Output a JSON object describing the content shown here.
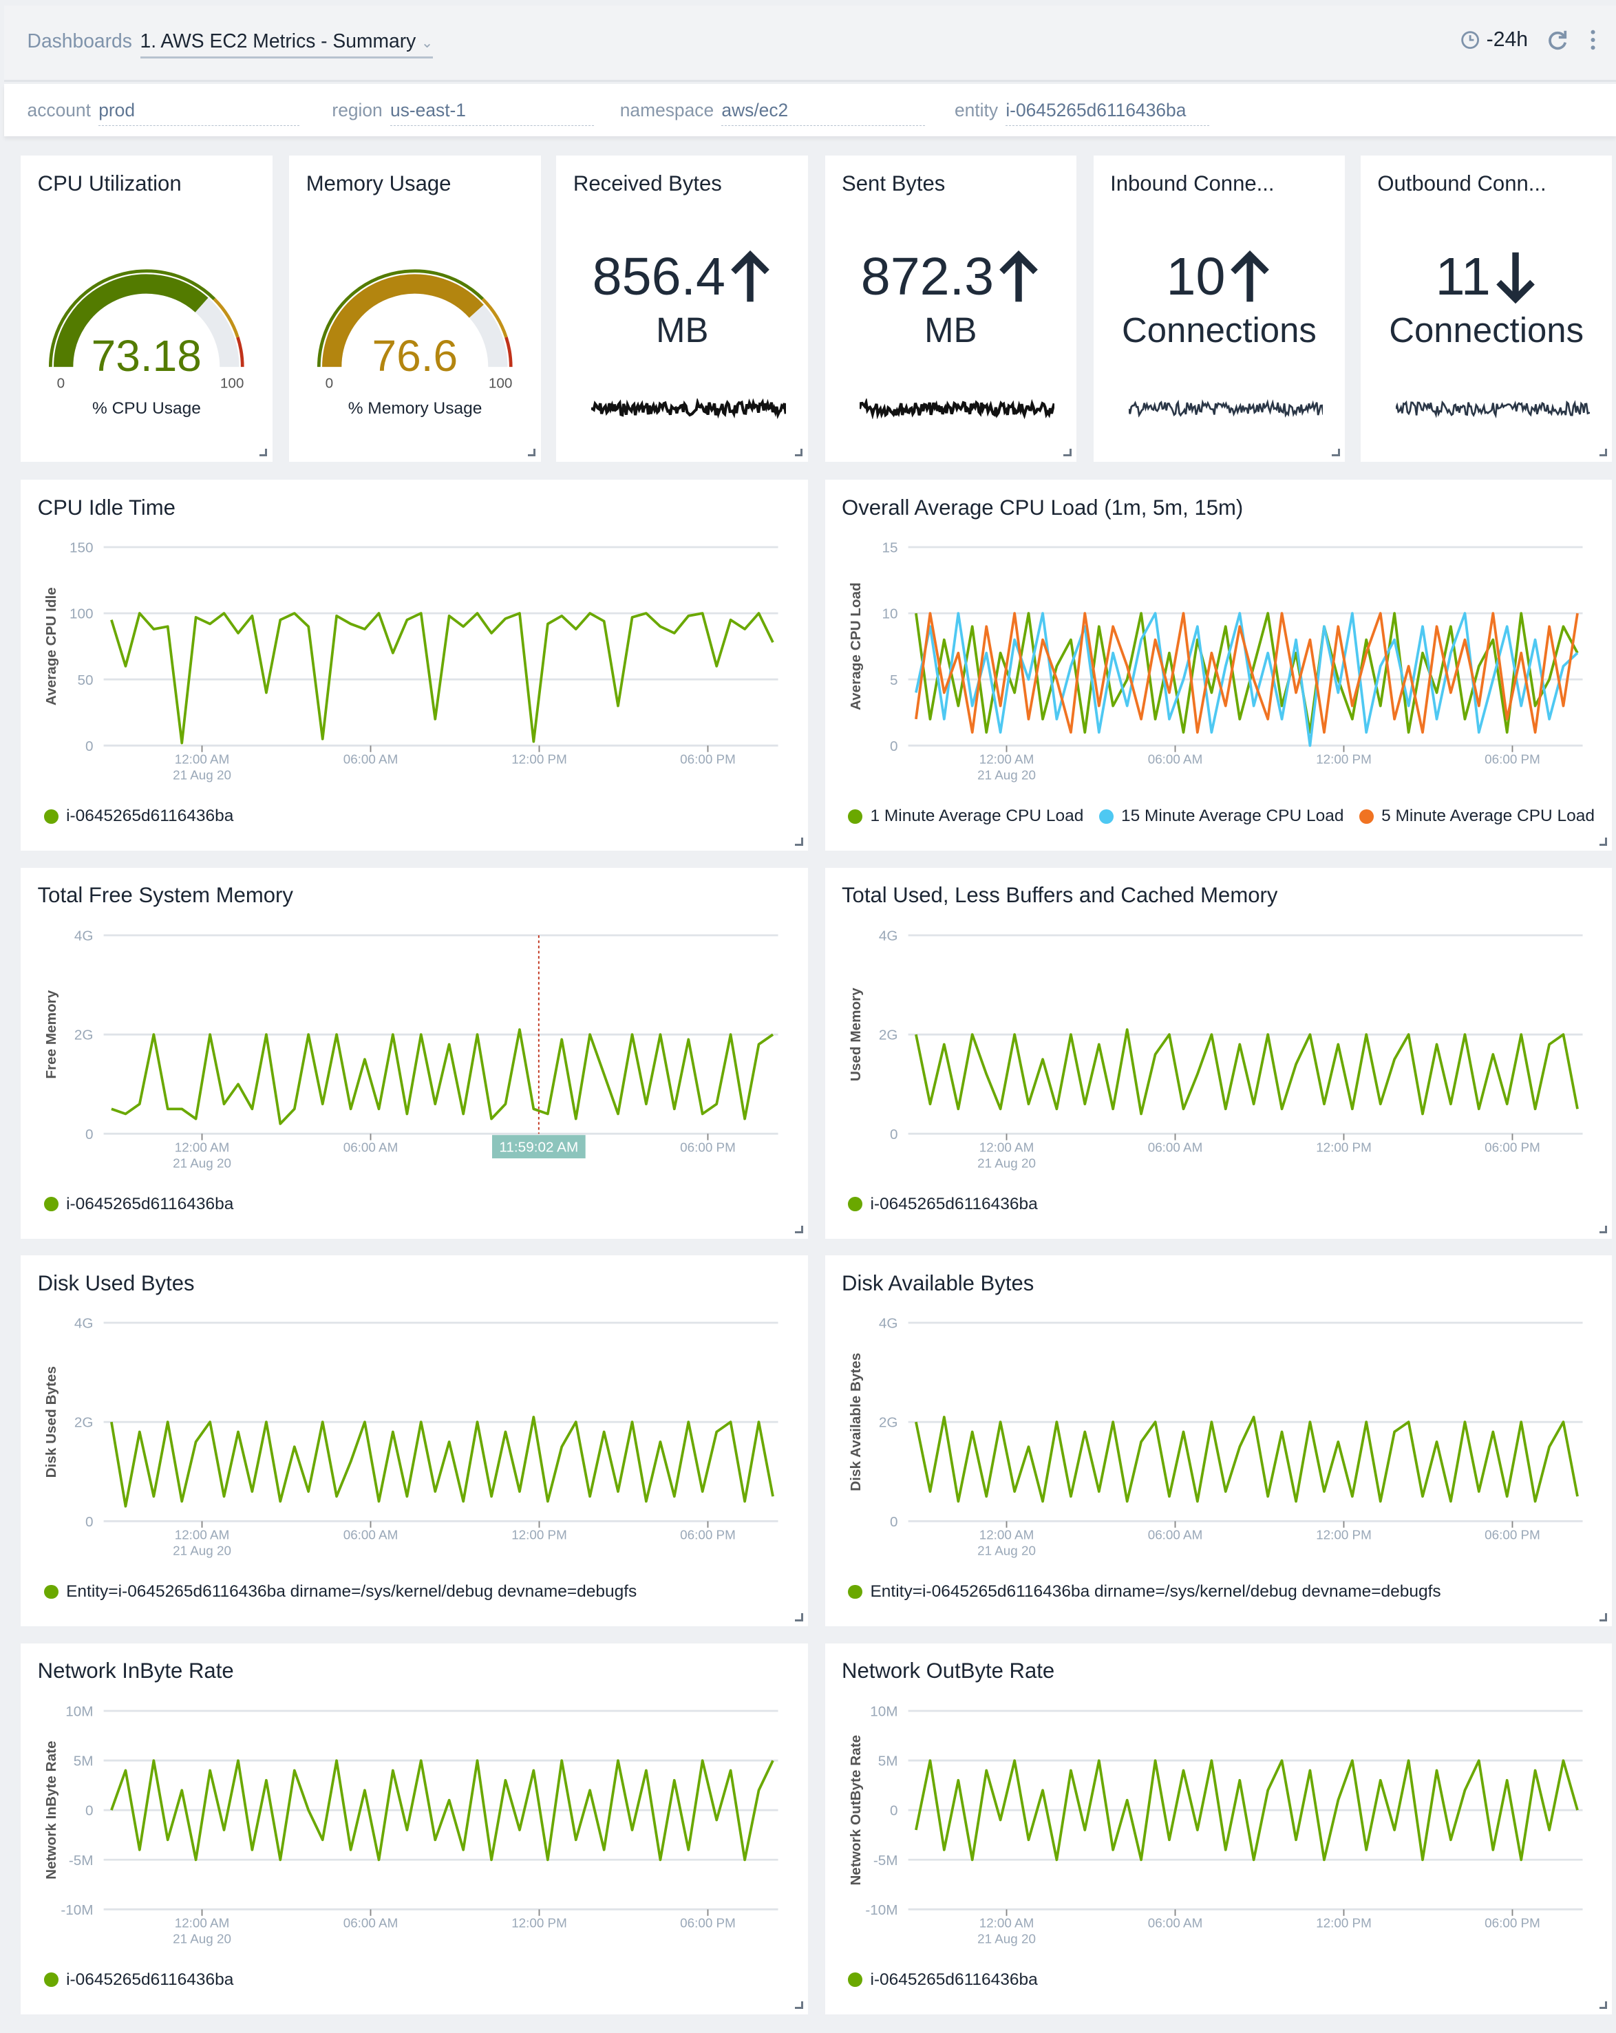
{
  "header": {
    "breadcrumb": "Dashboards",
    "title": "1. AWS EC2 Metrics - Summary",
    "time_range": "-24h",
    "icons": [
      "clock-icon",
      "refresh-icon",
      "more-vertical-icon",
      "chevron-down-icon"
    ]
  },
  "filters": [
    {
      "label": "account",
      "value": "prod"
    },
    {
      "label": "region",
      "value": "us-east-1"
    },
    {
      "label": "namespace",
      "value": "aws/ec2"
    },
    {
      "label": "entity",
      "value": "i-0645265d6116436ba"
    }
  ],
  "stats": [
    {
      "title": "CPU Utilization",
      "type": "gauge",
      "value": "73.18",
      "min": "0",
      "max": "100",
      "label": "% CPU Usage",
      "color": "#537b00"
    },
    {
      "title": "Memory Usage",
      "type": "gauge",
      "value": "76.6",
      "min": "0",
      "max": "100",
      "label": "% Memory Usage",
      "color": "#b3850f"
    },
    {
      "title": "Received Bytes",
      "type": "single",
      "value": "856.4",
      "unit": "MB",
      "trend": "up"
    },
    {
      "title": "Sent Bytes",
      "type": "single",
      "value": "872.3",
      "unit": "MB",
      "trend": "up"
    },
    {
      "title": "Inbound Conne...",
      "type": "single",
      "value": "10",
      "unit": "Connections",
      "trend": "up"
    },
    {
      "title": "Outbound Conn...",
      "type": "single",
      "value": "11",
      "unit": "Connections",
      "trend": "down"
    }
  ],
  "gauge_thresholds": [
    {
      "to": 75,
      "color": "#537b00"
    },
    {
      "to": 90,
      "color": "#c29118"
    },
    {
      "to": 100,
      "color": "#c0321a"
    }
  ],
  "gauge_background": "#e8ebef",
  "chart_data": [
    {
      "type": "line",
      "title": "CPU Idle Time",
      "ylabel": "Average CPU Idle",
      "ylim": [
        0,
        150
      ],
      "yticks": [
        {
          "v": 0,
          "label": "0"
        },
        {
          "v": 50,
          "label": "50"
        },
        {
          "v": 100,
          "label": "100"
        },
        {
          "v": 150,
          "label": "150"
        }
      ],
      "x_start": "2020-08-20T20:30",
      "x_end": "2020-08-21T20:30",
      "xticks": [
        {
          "at": "2020-08-21T00:00",
          "label": "12:00 AM",
          "sub": "21 Aug 20"
        },
        {
          "at": "2020-08-21T06:00",
          "label": "06:00 AM"
        },
        {
          "at": "2020-08-21T12:00",
          "label": "12:00 PM"
        },
        {
          "at": "2020-08-21T18:00",
          "label": "06:00 PM"
        }
      ],
      "series": [
        {
          "name": "i-0645265d6116436ba",
          "color": "#6aa800",
          "values": [
            95,
            60,
            100,
            88,
            90,
            2,
            97,
            92,
            100,
            85,
            98,
            40,
            95,
            100,
            90,
            5,
            98,
            92,
            88,
            100,
            70,
            95,
            100,
            20,
            98,
            90,
            100,
            85,
            96,
            100,
            3,
            92,
            98,
            88,
            100,
            94,
            30,
            97,
            100,
            90,
            85,
            98,
            100,
            60,
            95,
            88,
            100,
            78
          ]
        }
      ]
    },
    {
      "type": "line",
      "title": "Overall Average CPU Load (1m, 5m, 15m)",
      "ylabel": "Average CPU Load",
      "ylim": [
        0,
        15
      ],
      "yticks": [
        {
          "v": 0,
          "label": "0"
        },
        {
          "v": 5,
          "label": "5"
        },
        {
          "v": 10,
          "label": "10"
        },
        {
          "v": 15,
          "label": "15"
        }
      ],
      "x_start": "2020-08-20T20:30",
      "x_end": "2020-08-21T20:30",
      "xticks": [
        {
          "at": "2020-08-21T00:00",
          "label": "12:00 AM",
          "sub": "21 Aug 20"
        },
        {
          "at": "2020-08-21T06:00",
          "label": "06:00 AM"
        },
        {
          "at": "2020-08-21T12:00",
          "label": "12:00 PM"
        },
        {
          "at": "2020-08-21T18:00",
          "label": "06:00 PM"
        }
      ],
      "series": [
        {
          "name": "1 Minute Average CPU Load",
          "color": "#6aa800",
          "values": [
            10,
            2,
            8,
            3,
            9,
            1,
            7,
            4,
            10,
            2,
            6,
            8,
            1,
            9,
            3,
            5,
            10,
            2,
            7,
            1,
            8,
            4,
            9,
            2,
            6,
            10,
            3,
            7,
            1,
            9,
            5,
            2,
            8,
            3,
            10,
            1,
            7,
            4,
            9,
            2,
            6,
            8,
            1,
            10,
            3,
            5,
            9,
            7
          ]
        },
        {
          "name": "15 Minute Average CPU Load",
          "color": "#4ec8f2",
          "values": [
            4,
            9,
            2,
            10,
            3,
            7,
            1,
            8,
            5,
            10,
            2,
            6,
            9,
            1,
            7,
            3,
            8,
            10,
            2,
            5,
            9,
            1,
            6,
            10,
            3,
            7,
            2,
            8,
            0,
            9,
            4,
            10,
            1,
            6,
            8,
            3,
            9,
            2,
            7,
            10,
            1,
            5,
            9,
            3,
            8,
            2,
            6,
            7
          ]
        },
        {
          "name": "5 Minute Average CPU Load",
          "color": "#f07322",
          "values": [
            2,
            10,
            4,
            7,
            1,
            9,
            3,
            10,
            2,
            8,
            5,
            1,
            10,
            3,
            9,
            6,
            2,
            8,
            4,
            10,
            1,
            7,
            3,
            9,
            5,
            2,
            10,
            4,
            8,
            1,
            9,
            3,
            7,
            10,
            2,
            6,
            1,
            9,
            4,
            8,
            3,
            10,
            2,
            7,
            1,
            9,
            3,
            10
          ]
        }
      ]
    },
    {
      "type": "line",
      "title": "Total Free System Memory",
      "ylabel": "Free Memory",
      "ylim": [
        0,
        4
      ],
      "yticks": [
        {
          "v": 0,
          "label": "0"
        },
        {
          "v": 2,
          "label": "2G"
        },
        {
          "v": 4,
          "label": "4G"
        }
      ],
      "x_start": "2020-08-20T20:30",
      "x_end": "2020-08-21T20:30",
      "xticks": [
        {
          "at": "2020-08-21T00:00",
          "label": "12:00 AM",
          "sub": "21 Aug 20"
        },
        {
          "at": "2020-08-21T06:00",
          "label": "06:00 AM"
        },
        {
          "at": "2020-08-21T18:00",
          "label": "06:00 PM"
        }
      ],
      "cursor": {
        "at": "2020-08-21T11:59:02",
        "label": "11:59:02 AM"
      },
      "series": [
        {
          "name": "i-0645265d6116436ba",
          "color": "#6aa800",
          "values": [
            0.5,
            0.4,
            0.6,
            2.0,
            0.5,
            0.5,
            0.3,
            2.0,
            0.6,
            1.0,
            0.5,
            2.0,
            0.2,
            0.5,
            2.0,
            0.6,
            2.0,
            0.5,
            1.5,
            0.5,
            2.0,
            0.4,
            2.0,
            0.6,
            1.8,
            0.4,
            2.0,
            0.3,
            0.6,
            2.1,
            0.5,
            0.4,
            1.9,
            0.3,
            2.0,
            1.2,
            0.4,
            2.0,
            0.6,
            2.0,
            0.5,
            1.9,
            0.4,
            0.6,
            2.0,
            0.3,
            1.8,
            2.0
          ]
        }
      ]
    },
    {
      "type": "line",
      "title": "Total Used, Less Buffers and Cached Memory",
      "ylabel": "Used Memory",
      "ylim": [
        0,
        4
      ],
      "yticks": [
        {
          "v": 0,
          "label": "0"
        },
        {
          "v": 2,
          "label": "2G"
        },
        {
          "v": 4,
          "label": "4G"
        }
      ],
      "x_start": "2020-08-20T20:30",
      "x_end": "2020-08-21T20:30",
      "xticks": [
        {
          "at": "2020-08-21T00:00",
          "label": "12:00 AM",
          "sub": "21 Aug 20"
        },
        {
          "at": "2020-08-21T06:00",
          "label": "06:00 AM"
        },
        {
          "at": "2020-08-21T12:00",
          "label": "12:00 PM"
        },
        {
          "at": "2020-08-21T18:00",
          "label": "06:00 PM"
        }
      ],
      "series": [
        {
          "name": "i-0645265d6116436ba",
          "color": "#6aa800",
          "values": [
            2.0,
            0.6,
            1.8,
            0.5,
            2.0,
            1.2,
            0.5,
            2.0,
            0.6,
            1.5,
            0.5,
            2.0,
            0.6,
            1.8,
            0.5,
            2.1,
            0.4,
            1.6,
            2.0,
            0.5,
            1.2,
            2.0,
            0.5,
            1.8,
            0.6,
            2.0,
            0.5,
            1.4,
            2.0,
            0.6,
            1.8,
            0.5,
            2.0,
            0.6,
            1.5,
            2.0,
            0.4,
            1.8,
            0.6,
            2.0,
            0.5,
            1.6,
            0.6,
            2.0,
            0.5,
            1.8,
            2.0,
            0.5
          ]
        }
      ]
    },
    {
      "type": "line",
      "title": "Disk Used Bytes",
      "ylabel": "Disk Used Bytes",
      "ylim": [
        0,
        4
      ],
      "yticks": [
        {
          "v": 0,
          "label": "0"
        },
        {
          "v": 2,
          "label": "2G"
        },
        {
          "v": 4,
          "label": "4G"
        }
      ],
      "x_start": "2020-08-20T20:30",
      "x_end": "2020-08-21T20:30",
      "xticks": [
        {
          "at": "2020-08-21T00:00",
          "label": "12:00 AM",
          "sub": "21 Aug 20"
        },
        {
          "at": "2020-08-21T06:00",
          "label": "06:00 AM"
        },
        {
          "at": "2020-08-21T12:00",
          "label": "12:00 PM"
        },
        {
          "at": "2020-08-21T18:00",
          "label": "06:00 PM"
        }
      ],
      "series": [
        {
          "name": "Entity=i-0645265d6116436ba dirname=/sys/kernel/debug devname=debugfs",
          "color": "#6aa800",
          "values": [
            2.0,
            0.3,
            1.8,
            0.5,
            2.0,
            0.4,
            1.6,
            2.0,
            0.5,
            1.8,
            0.6,
            2.0,
            0.4,
            1.5,
            0.6,
            2.0,
            0.5,
            1.2,
            2.0,
            0.4,
            1.8,
            0.5,
            2.0,
            0.6,
            1.6,
            0.4,
            2.0,
            0.5,
            1.8,
            0.6,
            2.1,
            0.4,
            1.5,
            2.0,
            0.5,
            1.8,
            0.6,
            2.0,
            0.4,
            1.6,
            0.5,
            2.0,
            0.6,
            1.8,
            2.0,
            0.4,
            2.0,
            0.5
          ]
        }
      ]
    },
    {
      "type": "line",
      "title": "Disk Available Bytes",
      "ylabel": "Disk Available Bytes",
      "ylim": [
        0,
        4
      ],
      "yticks": [
        {
          "v": 0,
          "label": "0"
        },
        {
          "v": 2,
          "label": "2G"
        },
        {
          "v": 4,
          "label": "4G"
        }
      ],
      "x_start": "2020-08-20T20:30",
      "x_end": "2020-08-21T20:30",
      "xticks": [
        {
          "at": "2020-08-21T00:00",
          "label": "12:00 AM",
          "sub": "21 Aug 20"
        },
        {
          "at": "2020-08-21T06:00",
          "label": "06:00 AM"
        },
        {
          "at": "2020-08-21T12:00",
          "label": "12:00 PM"
        },
        {
          "at": "2020-08-21T18:00",
          "label": "06:00 PM"
        }
      ],
      "series": [
        {
          "name": "Entity=i-0645265d6116436ba dirname=/sys/kernel/debug devname=debugfs",
          "color": "#6aa800",
          "values": [
            2.0,
            0.6,
            2.1,
            0.4,
            1.8,
            0.5,
            2.0,
            0.6,
            1.5,
            0.4,
            2.0,
            0.5,
            1.8,
            0.6,
            2.0,
            0.4,
            1.6,
            2.0,
            0.5,
            1.8,
            0.4,
            2.0,
            0.6,
            1.5,
            2.1,
            0.5,
            1.8,
            0.4,
            2.0,
            0.6,
            1.6,
            0.5,
            2.0,
            0.4,
            1.8,
            2.0,
            0.5,
            1.6,
            0.4,
            2.0,
            0.6,
            1.8,
            0.5,
            2.0,
            0.4,
            1.5,
            2.0,
            0.5
          ]
        }
      ]
    },
    {
      "type": "line",
      "title": "Network InByte Rate",
      "ylabel": "Network InByte Rate",
      "ylim": [
        -10,
        10
      ],
      "yticks": [
        {
          "v": -10,
          "label": "-10M"
        },
        {
          "v": -5,
          "label": "-5M"
        },
        {
          "v": 0,
          "label": "0"
        },
        {
          "v": 5,
          "label": "5M"
        },
        {
          "v": 10,
          "label": "10M"
        }
      ],
      "x_start": "2020-08-20T20:30",
      "x_end": "2020-08-21T20:30",
      "xticks": [
        {
          "at": "2020-08-21T00:00",
          "label": "12:00 AM",
          "sub": "21 Aug 20"
        },
        {
          "at": "2020-08-21T06:00",
          "label": "06:00 AM"
        },
        {
          "at": "2020-08-21T12:00",
          "label": "12:00 PM"
        },
        {
          "at": "2020-08-21T18:00",
          "label": "06:00 PM"
        }
      ],
      "series": [
        {
          "name": "i-0645265d6116436ba",
          "color": "#6aa800",
          "values": [
            0,
            4,
            -4,
            5,
            -3,
            2,
            -5,
            4,
            -2,
            5,
            -4,
            3,
            -5,
            4,
            0,
            -3,
            5,
            -4,
            2,
            -5,
            4,
            -2,
            5,
            -3,
            1,
            -4,
            5,
            -5,
            3,
            -2,
            4,
            -5,
            5,
            -3,
            2,
            -4,
            5,
            -2,
            4,
            -5,
            3,
            -4,
            5,
            -1,
            4,
            -5,
            2,
            5
          ]
        }
      ]
    },
    {
      "type": "line",
      "title": "Network OutByte Rate",
      "ylabel": "Network OutByte Rate",
      "ylim": [
        -10,
        10
      ],
      "yticks": [
        {
          "v": -10,
          "label": "-10M"
        },
        {
          "v": -5,
          "label": "-5M"
        },
        {
          "v": 0,
          "label": "0"
        },
        {
          "v": 5,
          "label": "5M"
        },
        {
          "v": 10,
          "label": "10M"
        }
      ],
      "x_start": "2020-08-20T20:30",
      "x_end": "2020-08-21T20:30",
      "xticks": [
        {
          "at": "2020-08-21T00:00",
          "label": "12:00 AM",
          "sub": "21 Aug 20"
        },
        {
          "at": "2020-08-21T06:00",
          "label": "06:00 AM"
        },
        {
          "at": "2020-08-21T12:00",
          "label": "12:00 PM"
        },
        {
          "at": "2020-08-21T18:00",
          "label": "06:00 PM"
        }
      ],
      "series": [
        {
          "name": "i-0645265d6116436ba",
          "color": "#6aa800",
          "values": [
            -2,
            5,
            -4,
            3,
            -5,
            4,
            -1,
            5,
            -3,
            2,
            -5,
            4,
            -2,
            5,
            -4,
            1,
            -5,
            5,
            -3,
            4,
            -2,
            5,
            -4,
            3,
            -5,
            2,
            5,
            -3,
            4,
            -5,
            1,
            5,
            -4,
            3,
            -2,
            5,
            -5,
            4,
            -3,
            2,
            5,
            -4,
            3,
            -5,
            4,
            -2,
            5,
            0
          ]
        }
      ]
    }
  ]
}
